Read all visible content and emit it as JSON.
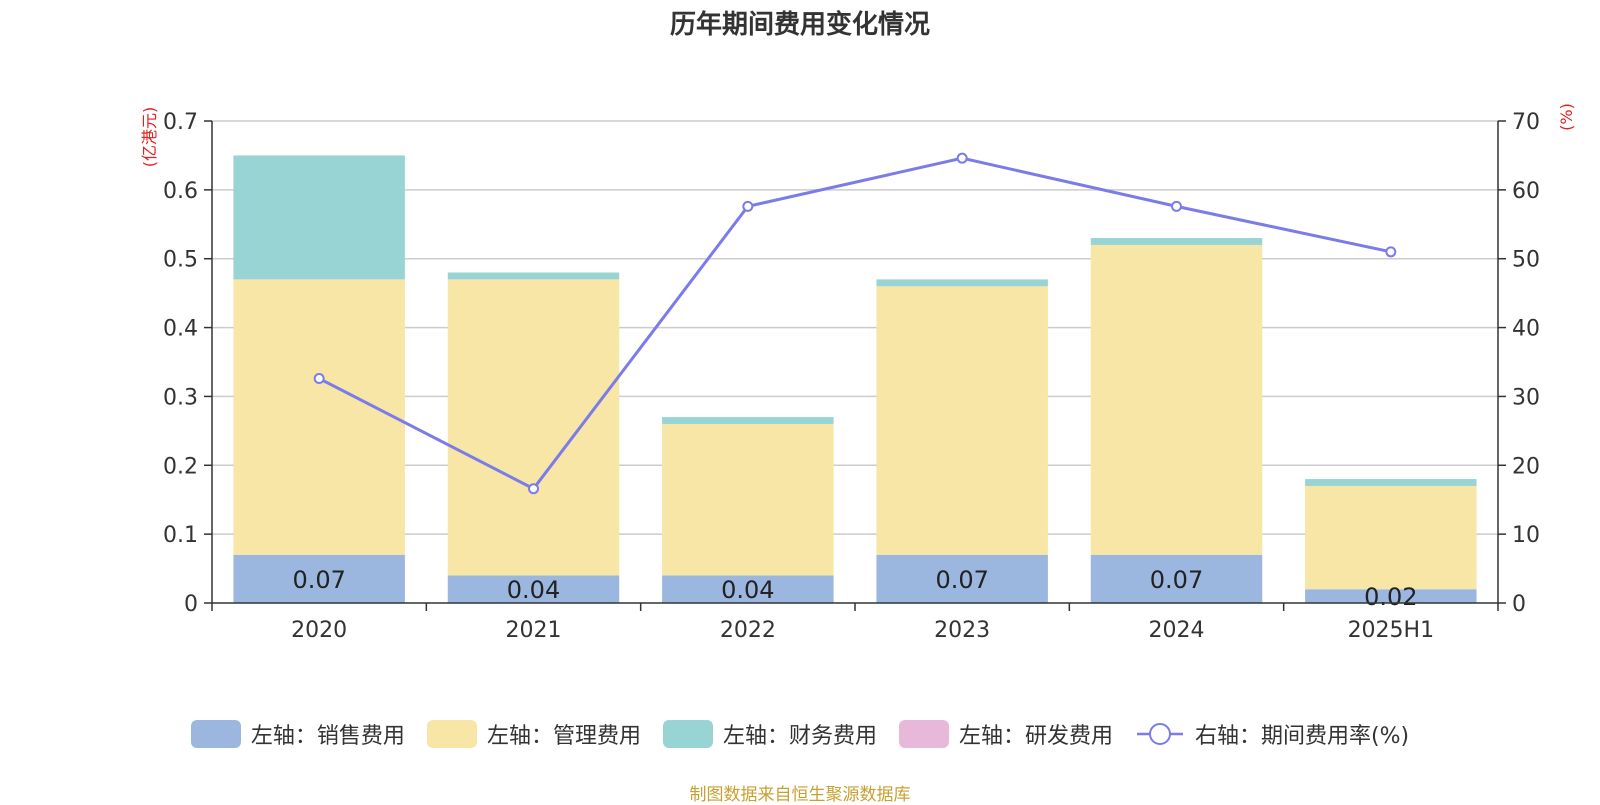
{
  "chart_data": {
    "type": "bar",
    "title": "历年期间费用变化情况",
    "categories": [
      "2020",
      "2021",
      "2022",
      "2023",
      "2024",
      "2025H1"
    ],
    "left_axis": {
      "unit_label": "(亿港元)",
      "ylim": [
        0,
        0.7
      ],
      "ticks": [
        "0",
        "0.1",
        "0.2",
        "0.3",
        "0.4",
        "0.5",
        "0.6",
        "0.7"
      ]
    },
    "right_axis": {
      "unit_label": "(%)",
      "ylim": [
        0,
        70
      ],
      "ticks": [
        "0",
        "10",
        "20",
        "30",
        "40",
        "50",
        "60",
        "70"
      ]
    },
    "grid": true,
    "stacked": true,
    "series": [
      {
        "name": "左轴：销售费用",
        "axis": "left",
        "color": "#9bb7e0",
        "values": [
          0.07,
          0.04,
          0.04,
          0.07,
          0.07,
          0.02
        ],
        "labels": [
          "0.07",
          "0.04",
          "0.04",
          "0.07",
          "0.07",
          "0.02"
        ]
      },
      {
        "name": "左轴：管理费用",
        "axis": "left",
        "color": "#f7e6a6",
        "values": [
          0.4,
          0.43,
          0.22,
          0.39,
          0.45,
          0.15
        ]
      },
      {
        "name": "左轴：财务费用",
        "axis": "left",
        "color": "#99d4d4",
        "values": [
          0.18,
          0.01,
          0.01,
          0.01,
          0.01,
          0.01
        ]
      },
      {
        "name": "左轴：研发费用",
        "axis": "left",
        "color": "#e8b8da",
        "values": [
          0,
          0,
          0,
          0,
          0,
          0
        ]
      },
      {
        "name": "右轴：期间费用率(%)",
        "axis": "right",
        "type": "line",
        "color": "#7b7bea",
        "values": [
          32.6,
          16.6,
          57.6,
          64.6,
          57.6,
          51.0
        ]
      }
    ],
    "legend_position": "bottom-center"
  },
  "source": "制图数据来自恒生聚源数据库"
}
